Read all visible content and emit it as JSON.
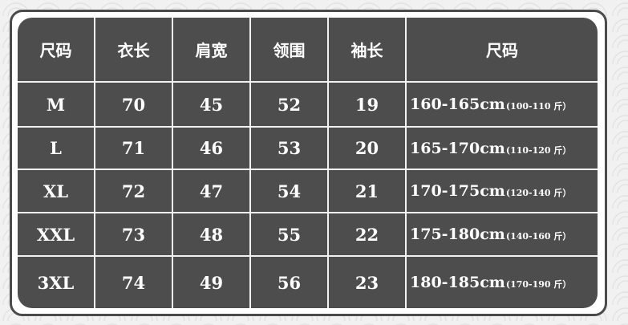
{
  "headers": [
    "尺码",
    "衣长",
    "肩宽",
    "领围",
    "袖长",
    "尺码"
  ],
  "rows": [
    {
      "size": "M",
      "length": "70",
      "shoulder": "45",
      "collar": "52",
      "sleeve": "19",
      "height": "160-165cm",
      "weight": "(100-110 斤）"
    },
    {
      "size": "L",
      "length": "71",
      "shoulder": "46",
      "collar": "53",
      "sleeve": "20",
      "height": "165-170cm",
      "weight": "(110-120 斤）"
    },
    {
      "size": "XL",
      "length": "72",
      "shoulder": "47",
      "collar": "54",
      "sleeve": "21",
      "height": "170-175cm",
      "weight": "(120-140 斤）"
    },
    {
      "size": "XXL",
      "length": "73",
      "shoulder": "48",
      "collar": "55",
      "sleeve": "22",
      "height": "175-180cm",
      "weight": "(140-160 斤）"
    },
    {
      "size": "3XL",
      "length": "74",
      "shoulder": "49",
      "collar": "56",
      "sleeve": "23",
      "height": "180-185cm",
      "weight": "(170-190 斤）"
    }
  ],
  "colors": {
    "table_bg": "#4d4d4d",
    "text": "#ffffff",
    "grid_line": "#f2f2f2",
    "page_bg": "#f1f1f1"
  }
}
